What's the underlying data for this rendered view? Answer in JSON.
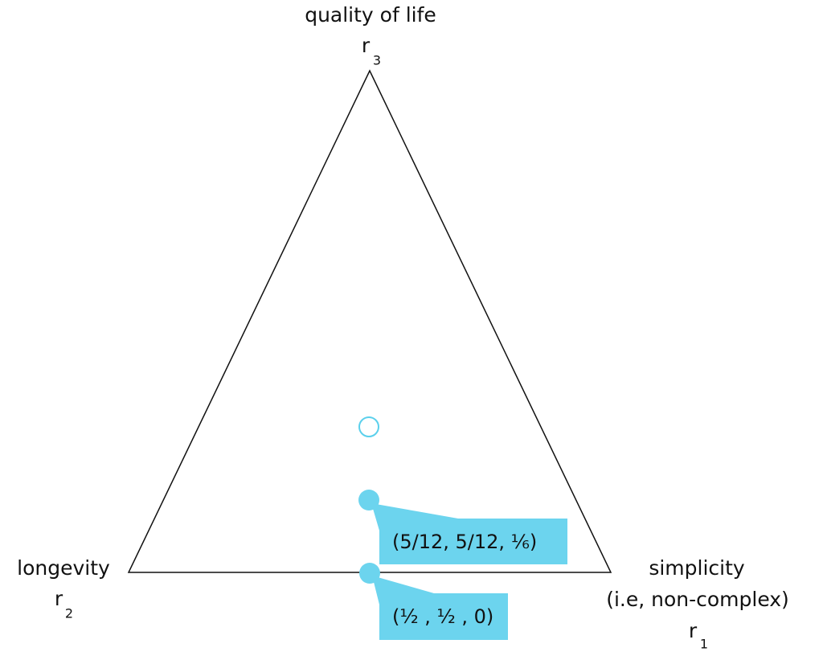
{
  "vertices": [
    {
      "label": "quality of life",
      "var": "r",
      "sub": "3"
    },
    {
      "label": "longevity",
      "var": "r",
      "sub": "2"
    },
    {
      "label": "simplicity",
      "note": "(i.e, non-complex)",
      "var": "r",
      "sub": "1"
    }
  ],
  "points": [
    {
      "label": "(5/12, 5/12, ⅙)"
    },
    {
      "label": "(½ , ½ , 0)"
    }
  ]
}
